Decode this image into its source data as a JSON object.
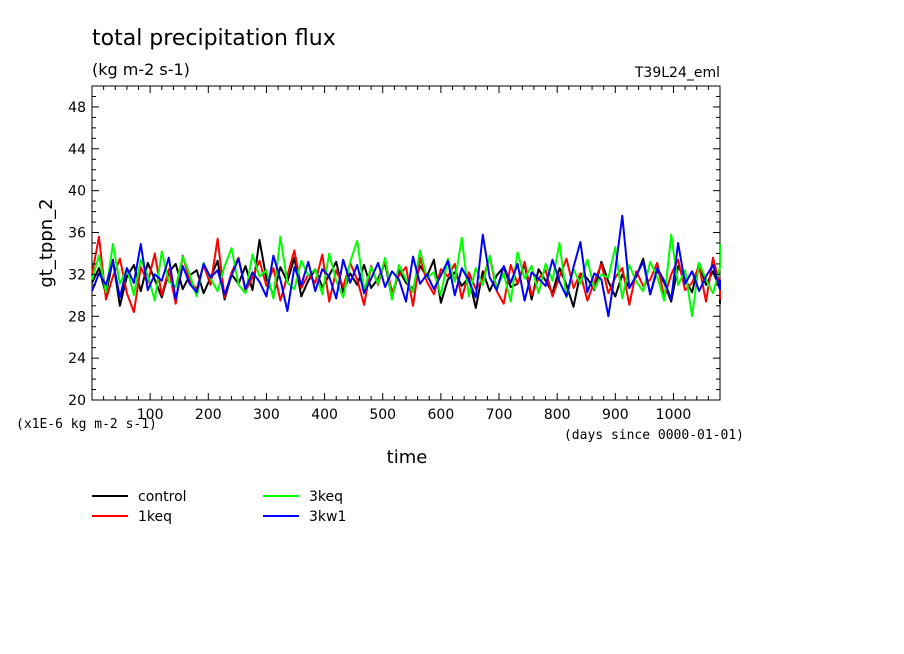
{
  "chart_data": {
    "type": "line",
    "title": "total precipitation flux",
    "subtitle": "(kg m-2 s-1)",
    "run_label": "T39L24_eml",
    "ylabel": "gt_tppn_2",
    "xlabel": "time",
    "x_unit_note": "(days since 0000-01-01)",
    "y_unit_note": "(x1E-6 kg m-2 s-1)",
    "xlim": [
      0,
      1080
    ],
    "ylim": [
      20,
      50
    ],
    "x_ticks": [
      100,
      200,
      300,
      400,
      500,
      600,
      700,
      800,
      900,
      1000
    ],
    "y_ticks": [
      20,
      24,
      28,
      32,
      36,
      40,
      44,
      48
    ],
    "grid": false,
    "legend_position": "bottom-left",
    "x_step_days": 12,
    "series": [
      {
        "name": "control",
        "color": "#000000",
        "values": [
          31.2,
          32.6,
          30.1,
          33.4,
          29.0,
          31.8,
          32.9,
          30.4,
          33.1,
          31.5,
          29.8,
          32.2,
          33.0,
          30.6,
          31.9,
          32.4,
          30.2,
          31.7,
          33.3,
          29.6,
          32.0,
          31.1,
          32.8,
          30.5,
          35.3,
          31.6,
          30.0,
          32.7,
          31.3,
          33.6,
          29.9,
          31.4,
          32.5,
          30.8,
          31.9,
          33.2,
          30.3,
          32.1,
          31.0,
          32.9,
          30.7,
          31.6,
          33.1,
          29.7,
          32.4,
          31.2,
          30.6,
          32.8,
          31.8,
          33.4,
          29.3,
          31.5,
          32.2,
          30.9,
          31.7,
          28.8,
          32.3,
          30.4,
          31.9,
          32.7,
          30.8,
          31.1,
          33.0,
          29.6,
          32.5,
          31.4,
          30.2,
          32.6,
          31.0,
          28.9,
          32.1,
          31.6,
          30.5,
          33.2,
          31.3,
          29.9,
          32.0,
          30.7,
          31.8,
          33.5,
          30.1,
          32.4,
          31.2,
          29.4,
          32.8,
          31.5,
          30.3,
          33.1,
          31.0,
          32.3,
          30.6,
          29.2
        ]
      },
      {
        "name": "1keq",
        "color": "#ff0000",
        "values": [
          32.0,
          35.6,
          29.6,
          31.8,
          33.5,
          30.2,
          28.4,
          32.7,
          31.2,
          34.0,
          30.0,
          32.5,
          29.2,
          33.8,
          31.4,
          30.6,
          32.9,
          31.0,
          35.4,
          29.8,
          32.2,
          33.6,
          30.4,
          31.7,
          33.3,
          30.9,
          32.6,
          29.5,
          31.9,
          34.3,
          30.7,
          32.0,
          31.2,
          33.9,
          29.4,
          32.4,
          30.8,
          33.1,
          31.5,
          29.1,
          32.8,
          31.0,
          33.4,
          30.3,
          31.9,
          32.7,
          29.0,
          33.6,
          31.3,
          30.1,
          32.5,
          31.8,
          33.0,
          29.7,
          32.2,
          30.6,
          31.5,
          33.7,
          30.4,
          29.2,
          32.9,
          31.1,
          33.2,
          30.0,
          31.6,
          32.4,
          29.9,
          31.8,
          33.5,
          30.7,
          32.1,
          29.5,
          31.3,
          33.0,
          30.2,
          31.7,
          32.6,
          29.1,
          32.3,
          30.9,
          31.5,
          33.1,
          29.8,
          32.0,
          33.4,
          30.5,
          31.2,
          32.8,
          29.4,
          33.6,
          31.0,
          29.6
        ]
      },
      {
        "name": "3keq",
        "color": "#00ff00",
        "values": [
          31.5,
          33.8,
          30.3,
          34.9,
          31.1,
          32.6,
          30.0,
          33.4,
          31.9,
          29.5,
          34.2,
          31.3,
          30.8,
          33.7,
          32.0,
          29.9,
          33.1,
          31.6,
          30.4,
          32.8,
          34.5,
          31.0,
          30.2,
          33.9,
          31.8,
          32.4,
          29.7,
          35.6,
          31.2,
          30.6,
          33.3,
          31.9,
          32.5,
          30.1,
          34.0,
          31.4,
          29.8,
          33.2,
          35.2,
          30.5,
          32.7,
          31.1,
          33.6,
          29.6,
          32.9,
          31.5,
          30.3,
          34.3,
          31.7,
          32.2,
          30.0,
          33.5,
          31.3,
          35.5,
          29.9,
          32.6,
          31.0,
          33.8,
          30.7,
          32.1,
          29.4,
          34.1,
          31.6,
          32.8,
          30.2,
          33.0,
          31.4,
          35.0,
          29.8,
          32.5,
          31.1,
          33.4,
          30.6,
          32.0,
          31.7,
          34.6,
          29.7,
          32.9,
          31.3,
          30.4,
          33.2,
          31.8,
          29.5,
          35.8,
          31.0,
          32.4,
          28.0,
          33.1,
          31.5,
          30.2,
          32.7,
          34.9
        ]
      },
      {
        "name": "3kw1",
        "color": "#0000ff",
        "values": [
          30.4,
          32.1,
          31.0,
          33.3,
          29.8,
          32.6,
          31.2,
          34.9,
          30.5,
          32.0,
          31.4,
          33.6,
          29.6,
          32.8,
          31.1,
          30.3,
          33.0,
          31.7,
          32.4,
          30.1,
          31.9,
          33.5,
          30.6,
          32.2,
          31.3,
          29.9,
          33.8,
          31.5,
          28.5,
          32.7,
          31.0,
          33.2,
          30.4,
          32.5,
          31.8,
          29.7,
          33.4,
          31.2,
          32.9,
          30.2,
          31.6,
          33.1,
          30.8,
          32.3,
          31.5,
          29.4,
          33.7,
          31.1,
          32.0,
          30.6,
          31.9,
          33.3,
          30.0,
          32.6,
          31.4,
          29.8,
          35.8,
          31.7,
          30.5,
          32.8,
          31.2,
          33.0,
          29.5,
          32.2,
          31.6,
          30.9,
          33.4,
          31.3,
          29.9,
          32.7,
          35.1,
          30.3,
          32.1,
          31.5,
          28.0,
          32.4,
          37.6,
          30.7,
          31.9,
          33.2,
          30.1,
          32.6,
          31.4,
          29.6,
          35.0,
          31.1,
          32.3,
          30.4,
          31.8,
          32.9,
          30.6,
          31.5
        ]
      }
    ]
  }
}
